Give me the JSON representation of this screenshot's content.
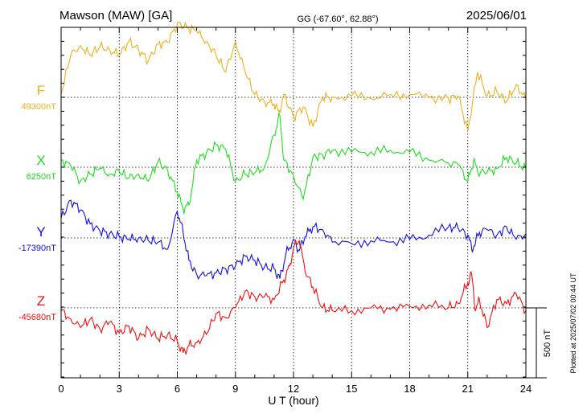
{
  "header": {
    "station": "Mawson (MAW)  [GA]",
    "coords": "GG (-67.60°,  62.88°)",
    "date": "2025/06/01"
  },
  "side_note": "Plotted at 2025/07/02 00:44 UT",
  "chart_data": {
    "type": "line",
    "xlabel": "U T (hour)",
    "xlim": [
      0,
      24
    ],
    "xticks": [
      "0",
      "3",
      "6",
      "9",
      "12",
      "15",
      "18",
      "21",
      "24"
    ],
    "scale_bar_label": "500 nT",
    "scale_bar_nT": 500,
    "grid": true,
    "series": [
      {
        "name": "F",
        "baseline_label": "49300nT",
        "baseline_nT": 49300,
        "color": "#f0b020",
        "x": [
          0,
          0.5,
          1,
          1.5,
          2,
          2.5,
          3,
          3.5,
          4,
          4.5,
          5,
          5.5,
          6,
          6.5,
          7,
          7.5,
          8,
          8.5,
          9,
          9.5,
          10,
          10.5,
          11,
          11.25,
          11.5,
          12,
          12.5,
          13,
          13.5,
          14,
          15,
          16,
          17,
          18,
          19,
          20,
          20.5,
          21,
          21.5,
          22,
          22.5,
          23,
          23.5,
          24
        ],
        "y": [
          49330,
          49600,
          49670,
          49600,
          49660,
          49640,
          49600,
          49700,
          49640,
          49560,
          49680,
          49690,
          49830,
          49800,
          49770,
          49700,
          49600,
          49480,
          49700,
          49480,
          49320,
          49270,
          49250,
          49190,
          49320,
          49160,
          49230,
          49090,
          49300,
          49300,
          49310,
          49290,
          49320,
          49320,
          49300,
          49290,
          49310,
          49060,
          49480,
          49310,
          49340,
          49270,
          49390,
          49280
        ]
      },
      {
        "name": "X",
        "baseline_label": "6250nT",
        "baseline_nT": 6250,
        "color": "#22dd22",
        "x": [
          0,
          0.5,
          1,
          1.5,
          2,
          2.5,
          3,
          3.5,
          4,
          4.5,
          5,
          5.5,
          6,
          6.3,
          6.6,
          7,
          7.5,
          8,
          8.5,
          9,
          9.5,
          10,
          10.5,
          11,
          11.3,
          11.5,
          12,
          12.5,
          13,
          13.5,
          14,
          15,
          16,
          17,
          18,
          19,
          20,
          20.5,
          21,
          21.3,
          21.5,
          22,
          22.5,
          23,
          23.5,
          24
        ],
        "y": [
          6300,
          6260,
          6150,
          6200,
          6240,
          6200,
          6220,
          6170,
          6200,
          6150,
          6290,
          6230,
          6070,
          5950,
          5980,
          6300,
          6350,
          6410,
          6380,
          6150,
          6200,
          6210,
          6250,
          6480,
          6620,
          6300,
          6190,
          6020,
          6320,
          6340,
          6370,
          6360,
          6360,
          6370,
          6360,
          6300,
          6280,
          6270,
          6150,
          6300,
          6220,
          6210,
          6240,
          6320,
          6280,
          6240
        ]
      },
      {
        "name": "Y",
        "baseline_label": "-17390nT",
        "baseline_nT": -17390,
        "color": "#1010dd",
        "x": [
          0,
          0.5,
          1,
          1.5,
          2,
          2.5,
          3,
          3.5,
          4,
          4.5,
          5,
          5.5,
          6,
          6.3,
          6.6,
          7,
          7.5,
          8,
          8.5,
          9,
          9.5,
          10,
          10.5,
          11,
          11.3,
          11.6,
          12,
          12.3,
          12.6,
          13,
          13.5,
          14,
          15,
          16,
          17,
          18,
          19,
          20,
          20.5,
          21,
          21.2,
          21.4,
          21.6,
          22,
          22.5,
          23,
          23.5,
          24
        ],
        "y": [
          -17250,
          -17120,
          -17190,
          -17290,
          -17340,
          -17360,
          -17380,
          -17400,
          -17390,
          -17410,
          -17420,
          -17470,
          -17200,
          -17350,
          -17550,
          -17650,
          -17660,
          -17640,
          -17610,
          -17590,
          -17520,
          -17550,
          -17600,
          -17610,
          -17680,
          -17510,
          -17400,
          -17480,
          -17380,
          -17310,
          -17330,
          -17420,
          -17430,
          -17410,
          -17420,
          -17400,
          -17370,
          -17310,
          -17320,
          -17370,
          -17470,
          -17420,
          -17350,
          -17330,
          -17370,
          -17310,
          -17400,
          -17360
        ]
      },
      {
        "name": "Z",
        "baseline_label": "-45680nT",
        "baseline_nT": -45680,
        "color": "#ee1111",
        "x": [
          0,
          0.5,
          1,
          1.5,
          2,
          2.5,
          3,
          3.5,
          4,
          4.5,
          5,
          5.5,
          6,
          6.3,
          6.6,
          7,
          7.5,
          8,
          8.5,
          9,
          9.5,
          10,
          10.5,
          11,
          11.5,
          11.8,
          12,
          12.3,
          12.6,
          13,
          13.5,
          14,
          15,
          16,
          17,
          18,
          19,
          20,
          20.5,
          21,
          21.2,
          21.4,
          21.6,
          22,
          22.5,
          23,
          23.5,
          24
        ],
        "y": [
          -45700,
          -45760,
          -45820,
          -45760,
          -45830,
          -45780,
          -45860,
          -45810,
          -45900,
          -45830,
          -45900,
          -45870,
          -45920,
          -46000,
          -45950,
          -45930,
          -45870,
          -45720,
          -45750,
          -45680,
          -45560,
          -45600,
          -45600,
          -45620,
          -45480,
          -45380,
          -45250,
          -45200,
          -45420,
          -45530,
          -45680,
          -45700,
          -45700,
          -45680,
          -45690,
          -45670,
          -45660,
          -45680,
          -45650,
          -45500,
          -45440,
          -45700,
          -45620,
          -45820,
          -45620,
          -45650,
          -45580,
          -45700
        ]
      }
    ]
  }
}
